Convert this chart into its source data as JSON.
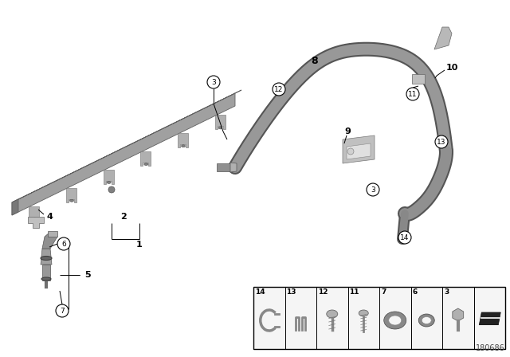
{
  "bg_color": "#ffffff",
  "diagram_id": "180686",
  "rail_color_top": "#b8b8b8",
  "rail_color_face": "#a0a0a0",
  "rail_color_dark": "#787878",
  "hose_color": "#909090",
  "hose_dark": "#606060",
  "part_gray": "#a8a8a8",
  "part_light": "#c8c8c8",
  "part_dark": "#686868",
  "label_color": "#000000",
  "legend_bg": "#f8f8f8",
  "legend_border": "#000000"
}
